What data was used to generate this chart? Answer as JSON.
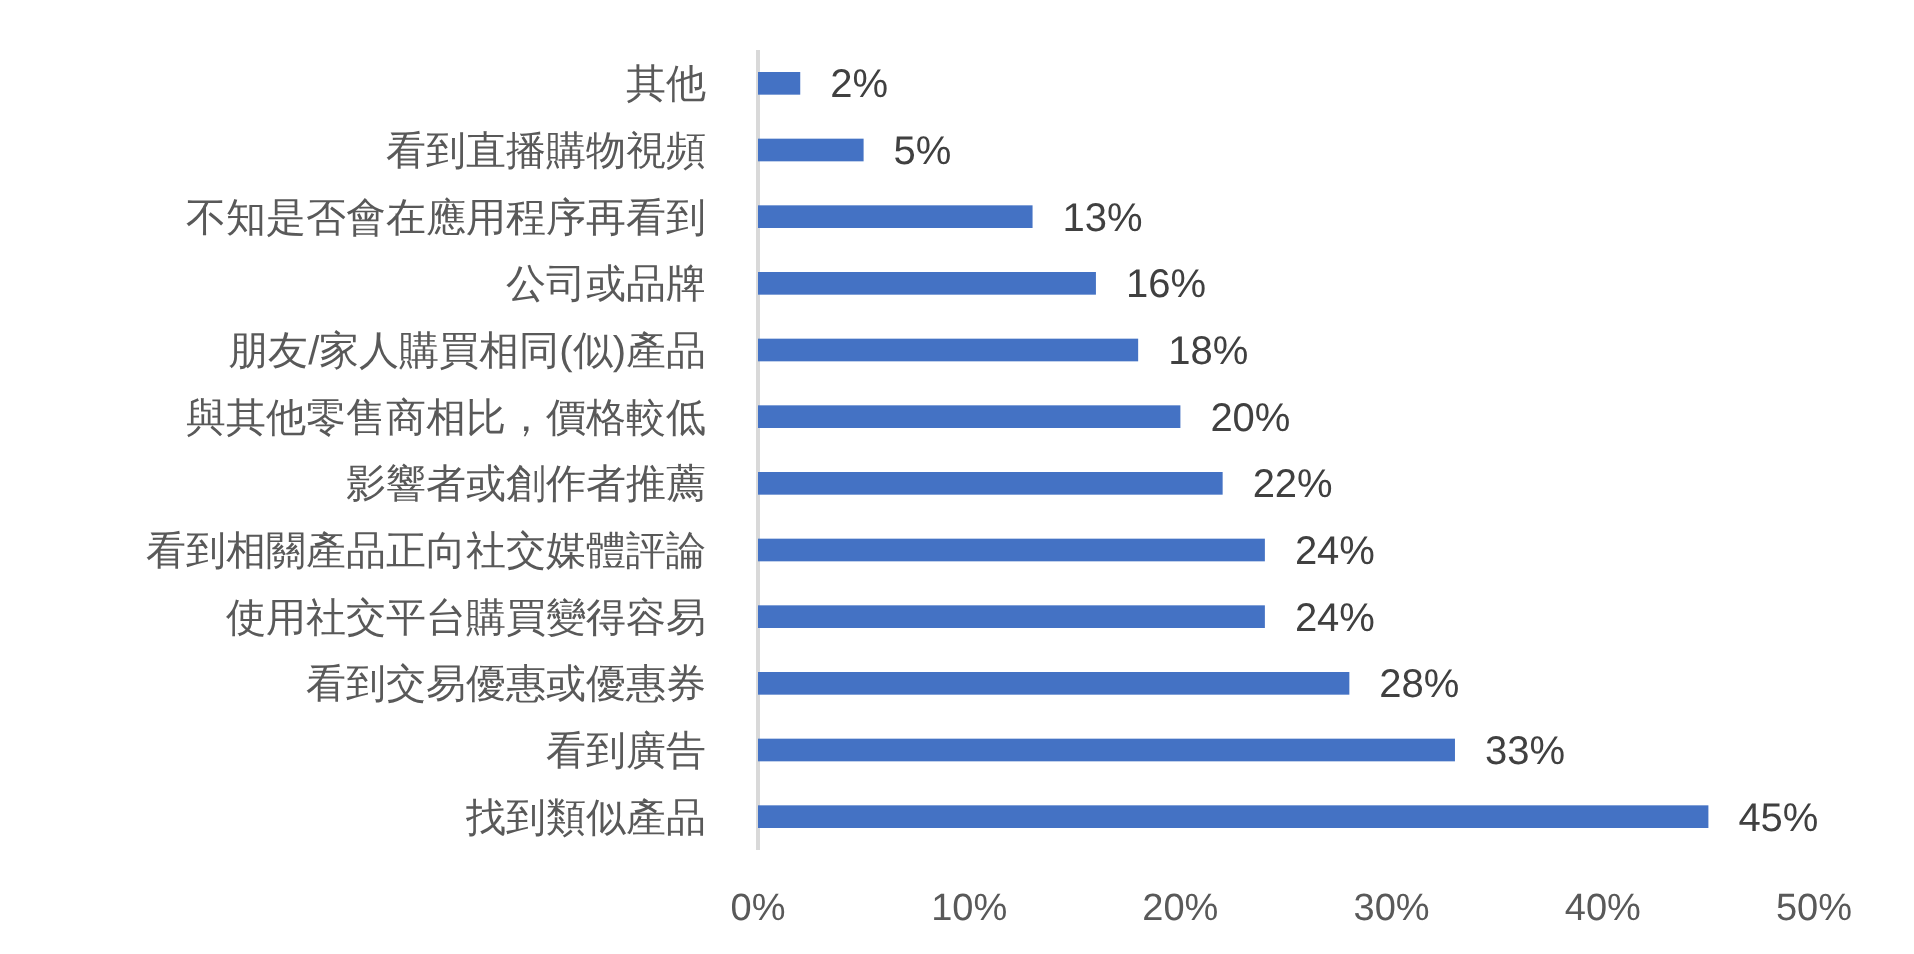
{
  "chart_data": {
    "type": "bar",
    "orientation": "horizontal",
    "categories": [
      "其他",
      "看到直播購物視頻",
      "不知是否會在應用程序再看到",
      "公司或品牌",
      "朋友/家人購買相同(似)產品",
      "與其他零售商相比，價格較低",
      "影響者或創作者推薦",
      "看到相關產品正向社交媒體評論",
      "使用社交平台購買變得容易",
      "看到交易優惠或優惠券",
      "看到廣告",
      "找到類似產品"
    ],
    "values": [
      2,
      5,
      13,
      16,
      18,
      20,
      22,
      24,
      24,
      28,
      33,
      45
    ],
    "value_labels": [
      "2%",
      "5%",
      "13%",
      "16%",
      "18%",
      "20%",
      "22%",
      "24%",
      "24%",
      "28%",
      "33%",
      "45%"
    ],
    "color": "#4472c4",
    "xlim": [
      0,
      50
    ],
    "xticks": [
      {
        "value": 0,
        "label": "0%"
      },
      {
        "value": 10,
        "label": "10%"
      },
      {
        "value": 20,
        "label": "20%"
      },
      {
        "value": 30,
        "label": "30%"
      },
      {
        "value": 40,
        "label": "40%"
      },
      {
        "value": 50,
        "label": "50%"
      }
    ]
  }
}
